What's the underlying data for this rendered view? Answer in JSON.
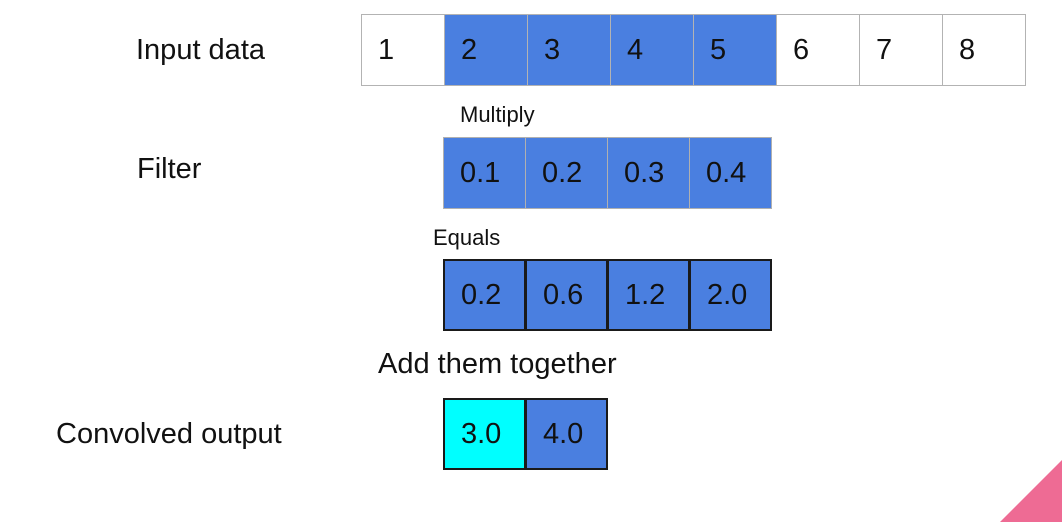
{
  "labels": {
    "input": "Input data",
    "filter": "Filter",
    "multiply": "Multiply",
    "equals": "Equals",
    "add": "Add them together",
    "output": "Convolved output"
  },
  "input_cells": [
    "1",
    "2",
    "3",
    "4",
    "5",
    "6",
    "7",
    "8"
  ],
  "filter_cells": [
    "0.1",
    "0.2",
    "0.3",
    "0.4"
  ],
  "product_cells": [
    "0.2",
    "0.6",
    "1.2",
    "2.0"
  ],
  "output_cells": [
    "3.0",
    "4.0"
  ],
  "colors": {
    "highlight": "#4a7fe0",
    "current_output": "#00ffff",
    "accent": "#ee6b94"
  }
}
